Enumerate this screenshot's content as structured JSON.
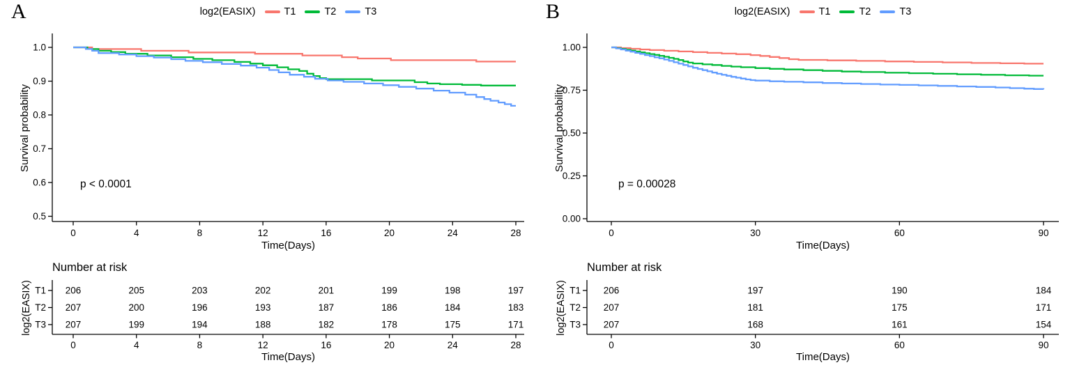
{
  "chart_data": [
    {
      "type": "line",
      "subtype": "kaplan-meier-step",
      "panel_label": "A",
      "legend_title": "log2(EASIX)",
      "legend_position": "top",
      "xlabel": "Time(Days)",
      "ylabel": "Survival probability",
      "annotation": "p < 0.0001",
      "grid": false,
      "xlim": [
        0,
        28
      ],
      "ylim": [
        0.5,
        1.0
      ],
      "xticks": [
        0,
        4,
        8,
        12,
        16,
        20,
        24,
        28
      ],
      "yticks": [
        1.0,
        0.9,
        0.8,
        0.7,
        0.6,
        0.5
      ],
      "ytick_labels": [
        "1.0",
        "0.9",
        "0.8",
        "0.7",
        "0.6",
        "0.5"
      ],
      "series": [
        {
          "name": "T1",
          "color": "#F8766D",
          "steps": [
            [
              0,
              1.0
            ],
            [
              1.2,
              0.995
            ],
            [
              4.3,
              0.99
            ],
            [
              7.3,
              0.985
            ],
            [
              11.5,
              0.981
            ],
            [
              14.5,
              0.976
            ],
            [
              17.0,
              0.971
            ],
            [
              18.0,
              0.967
            ],
            [
              20.1,
              0.962
            ],
            [
              25.5,
              0.958
            ]
          ]
        },
        {
          "name": "T2",
          "color": "#00BA38",
          "steps": [
            [
              0,
              1.0
            ],
            [
              0.9,
              0.995
            ],
            [
              1.6,
              0.99
            ],
            [
              2.4,
              0.986
            ],
            [
              3.3,
              0.981
            ],
            [
              4.7,
              0.976
            ],
            [
              6.2,
              0.971
            ],
            [
              7.6,
              0.966
            ],
            [
              8.8,
              0.962
            ],
            [
              10.2,
              0.957
            ],
            [
              11.2,
              0.952
            ],
            [
              12.0,
              0.947
            ],
            [
              12.9,
              0.941
            ],
            [
              13.6,
              0.935
            ],
            [
              14.3,
              0.93
            ],
            [
              14.8,
              0.922
            ],
            [
              15.2,
              0.915
            ],
            [
              15.6,
              0.909
            ],
            [
              16.0,
              0.906
            ],
            [
              18.9,
              0.902
            ],
            [
              21.6,
              0.897
            ],
            [
              22.4,
              0.893
            ],
            [
              23.2,
              0.891
            ],
            [
              24.6,
              0.889
            ],
            [
              25.8,
              0.887
            ]
          ]
        },
        {
          "name": "T3",
          "color": "#619CFF",
          "steps": [
            [
              0,
              1.0
            ],
            [
              0.8,
              0.995
            ],
            [
              1.2,
              0.99
            ],
            [
              1.6,
              0.983
            ],
            [
              2.9,
              0.979
            ],
            [
              4.0,
              0.974
            ],
            [
              5.1,
              0.97
            ],
            [
              6.2,
              0.965
            ],
            [
              7.1,
              0.96
            ],
            [
              8.2,
              0.956
            ],
            [
              9.4,
              0.951
            ],
            [
              10.6,
              0.946
            ],
            [
              11.6,
              0.94
            ],
            [
              12.4,
              0.933
            ],
            [
              13.0,
              0.926
            ],
            [
              13.7,
              0.919
            ],
            [
              14.6,
              0.913
            ],
            [
              15.3,
              0.907
            ],
            [
              16.1,
              0.902
            ],
            [
              17.1,
              0.898
            ],
            [
              18.4,
              0.893
            ],
            [
              19.6,
              0.888
            ],
            [
              20.6,
              0.883
            ],
            [
              21.7,
              0.878
            ],
            [
              22.8,
              0.872
            ],
            [
              23.8,
              0.866
            ],
            [
              24.8,
              0.86
            ],
            [
              25.5,
              0.853
            ],
            [
              26.0,
              0.847
            ],
            [
              26.4,
              0.842
            ],
            [
              26.9,
              0.837
            ],
            [
              27.3,
              0.832
            ],
            [
              27.7,
              0.827
            ]
          ]
        }
      ],
      "risk_table": {
        "title": "Number at risk",
        "axis_label": "log2(EASIX)",
        "xlabel": "Time(Days)",
        "rows": [
          {
            "name": "T1",
            "counts": [
              "206",
              "205",
              "203",
              "202",
              "201",
              "199",
              "198",
              "197"
            ]
          },
          {
            "name": "T2",
            "counts": [
              "207",
              "200",
              "196",
              "193",
              "187",
              "186",
              "184",
              "183"
            ]
          },
          {
            "name": "T3",
            "counts": [
              "207",
              "199",
              "194",
              "188",
              "182",
              "178",
              "175",
              "171"
            ]
          }
        ]
      }
    },
    {
      "type": "line",
      "subtype": "kaplan-meier-step",
      "panel_label": "B",
      "legend_title": "log2(EASIX)",
      "legend_position": "top",
      "xlabel": "Time(Days)",
      "ylabel": "Survival probability",
      "annotation": "p = 0.00028",
      "grid": false,
      "xlim": [
        0,
        90
      ],
      "ylim": [
        0.0,
        1.0
      ],
      "xticks": [
        0,
        30,
        60,
        90
      ],
      "yticks": [
        1.0,
        0.75,
        0.5,
        0.25,
        0.0
      ],
      "ytick_labels": [
        "1.00",
        "0.75",
        "0.50",
        "0.25",
        "0.00"
      ],
      "series": [
        {
          "name": "T1",
          "color": "#F8766D",
          "steps": [
            [
              0,
              1.0
            ],
            [
              2,
              0.996
            ],
            [
              4,
              0.992
            ],
            [
              6,
              0.988
            ],
            [
              8,
              0.984
            ],
            [
              11,
              0.98
            ],
            [
              14,
              0.976
            ],
            [
              17,
              0.972
            ],
            [
              20,
              0.968
            ],
            [
              23,
              0.964
            ],
            [
              26,
              0.96
            ],
            [
              29,
              0.955
            ],
            [
              31,
              0.95
            ],
            [
              33,
              0.944
            ],
            [
              35,
              0.938
            ],
            [
              37,
              0.931
            ],
            [
              39,
              0.927
            ],
            [
              45,
              0.924
            ],
            [
              51,
              0.921
            ],
            [
              57,
              0.918
            ],
            [
              63,
              0.915
            ],
            [
              69,
              0.912
            ],
            [
              75,
              0.909
            ],
            [
              81,
              0.907
            ],
            [
              86,
              0.905
            ]
          ]
        },
        {
          "name": "T2",
          "color": "#00BA38",
          "steps": [
            [
              0,
              1.0
            ],
            [
              1,
              0.996
            ],
            [
              2,
              0.991
            ],
            [
              3,
              0.986
            ],
            [
              4,
              0.981
            ],
            [
              5,
              0.976
            ],
            [
              6,
              0.971
            ],
            [
              7,
              0.966
            ],
            [
              8,
              0.961
            ],
            [
              9,
              0.956
            ],
            [
              10,
              0.951
            ],
            [
              11,
              0.945
            ],
            [
              12,
              0.939
            ],
            [
              13,
              0.933
            ],
            [
              14,
              0.926
            ],
            [
              15,
              0.918
            ],
            [
              16,
              0.911
            ],
            [
              17,
              0.906
            ],
            [
              19,
              0.901
            ],
            [
              21,
              0.897
            ],
            [
              23,
              0.892
            ],
            [
              25,
              0.888
            ],
            [
              27,
              0.884
            ],
            [
              30,
              0.879
            ],
            [
              33,
              0.875
            ],
            [
              36,
              0.871
            ],
            [
              40,
              0.867
            ],
            [
              44,
              0.863
            ],
            [
              48,
              0.859
            ],
            [
              52,
              0.856
            ],
            [
              57,
              0.852
            ],
            [
              62,
              0.849
            ],
            [
              67,
              0.846
            ],
            [
              72,
              0.843
            ],
            [
              77,
              0.84
            ],
            [
              82,
              0.837
            ],
            [
              87,
              0.835
            ]
          ]
        },
        {
          "name": "T3",
          "color": "#619CFF",
          "steps": [
            [
              0,
              1.0
            ],
            [
              1,
              0.994
            ],
            [
              2,
              0.988
            ],
            [
              3,
              0.981
            ],
            [
              4,
              0.975
            ],
            [
              5,
              0.968
            ],
            [
              6,
              0.962
            ],
            [
              7,
              0.955
            ],
            [
              8,
              0.949
            ],
            [
              9,
              0.942
            ],
            [
              10,
              0.936
            ],
            [
              11,
              0.929
            ],
            [
              12,
              0.921
            ],
            [
              13,
              0.913
            ],
            [
              14,
              0.905
            ],
            [
              15,
              0.897
            ],
            [
              16,
              0.889
            ],
            [
              17,
              0.881
            ],
            [
              18,
              0.874
            ],
            [
              19,
              0.867
            ],
            [
              20,
              0.86
            ],
            [
              21,
              0.853
            ],
            [
              22,
              0.846
            ],
            [
              23,
              0.84
            ],
            [
              24,
              0.834
            ],
            [
              25,
              0.828
            ],
            [
              26,
              0.823
            ],
            [
              27,
              0.818
            ],
            [
              28,
              0.813
            ],
            [
              29,
              0.809
            ],
            [
              30,
              0.806
            ],
            [
              33,
              0.802
            ],
            [
              36,
              0.799
            ],
            [
              40,
              0.796
            ],
            [
              44,
              0.792
            ],
            [
              48,
              0.789
            ],
            [
              52,
              0.786
            ],
            [
              56,
              0.783
            ],
            [
              60,
              0.781
            ],
            [
              64,
              0.778
            ],
            [
              68,
              0.775
            ],
            [
              72,
              0.772
            ],
            [
              76,
              0.769
            ],
            [
              80,
              0.766
            ],
            [
              83,
              0.762
            ],
            [
              86,
              0.759
            ],
            [
              88,
              0.757
            ],
            [
              90,
              0.755
            ]
          ]
        }
      ],
      "risk_table": {
        "title": "Number at risk",
        "axis_label": "log2(EASIX)",
        "xlabel": "Time(Days)",
        "rows": [
          {
            "name": "T1",
            "counts": [
              "206",
              "197",
              "190",
              "184"
            ]
          },
          {
            "name": "T2",
            "counts": [
              "207",
              "181",
              "175",
              "171"
            ]
          },
          {
            "name": "T3",
            "counts": [
              "207",
              "168",
              "161",
              "154"
            ]
          }
        ]
      }
    }
  ]
}
